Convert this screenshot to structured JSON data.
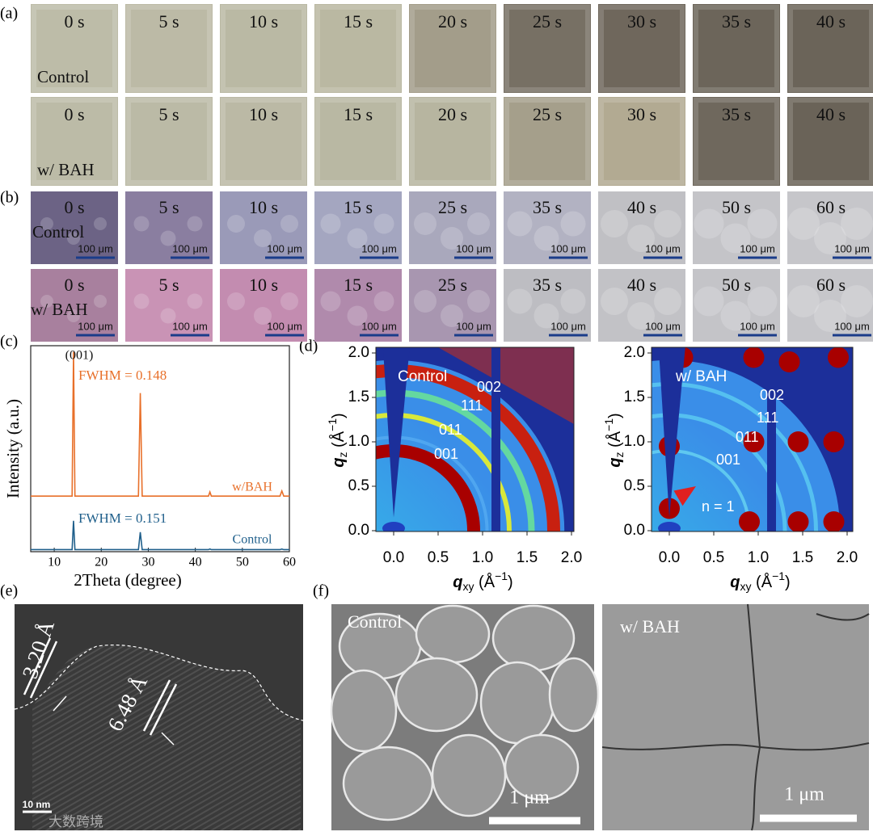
{
  "panels": {
    "a": {
      "label": "(a)",
      "times": [
        "0 s",
        "5 s",
        "10 s",
        "15 s",
        "20 s",
        "25 s",
        "30 s",
        "35 s",
        "40 s"
      ],
      "rows": [
        "Control",
        "w/ BAH"
      ]
    },
    "b": {
      "label": "(b)",
      "times": [
        "0 s",
        "5 s",
        "10 s",
        "15 s",
        "25 s",
        "35 s",
        "40 s",
        "50 s",
        "60 s"
      ],
      "rows": [
        "Control",
        "w/ BAH"
      ],
      "scale_bar": "100 μm"
    },
    "d": {
      "label": "(d)",
      "xlabel": {
        "symbol": "q",
        "sub": "xy",
        "unit": " (Å",
        "exp": "−1",
        "close": ")"
      },
      "ylabel": {
        "symbol": "q",
        "sub": "z",
        "unit": " (Å",
        "exp": "−1",
        "close": ")"
      },
      "xlim": [
        -0.2,
        2.0
      ],
      "ylim": [
        0,
        2.0
      ],
      "xticks": [
        {
          "value": 0,
          "label": "0.0"
        },
        0.5,
        {
          "value": 1,
          "label": "1.0"
        },
        1.5,
        {
          "value": 2,
          "label": "2.0"
        }
      ],
      "yticks": [
        {
          "value": 0,
          "label": "0.0"
        },
        0.5,
        {
          "value": 1,
          "label": "1.0"
        },
        1.5,
        {
          "value": 2,
          "label": "2.0"
        }
      ],
      "maps": [
        {
          "name": "Control",
          "peaks": [
            "002",
            "111",
            "011",
            "001"
          ]
        },
        {
          "name": "w/ BAH",
          "peaks": [
            "002",
            "111",
            "011",
            "001"
          ],
          "annotation": "n = 1"
        }
      ]
    },
    "e": {
      "label": "(e)",
      "spacings": [
        "3.20 Å",
        "6.48 Å"
      ],
      "scale_bar": "10 nm"
    },
    "f": {
      "label": "(f)",
      "images": [
        "Control",
        "w/ BAH"
      ],
      "scale_bar": "1 μm"
    }
  },
  "chart_data": {
    "type": "line",
    "label": "(c)",
    "xlabel": "2Theta (degree)",
    "ylabel": "Intensity (a.u.)",
    "x": [
      5,
      13.8,
      14.1,
      14.4,
      27.9,
      28.3,
      28.7,
      42.8,
      43.1,
      43.4,
      58.0,
      58.4,
      58.8,
      60
    ],
    "series": [
      {
        "name": "w/BAH",
        "color": "#e8702a",
        "values": [
          27,
          27,
          97,
          27,
          27,
          77,
          27,
          27,
          29,
          27,
          27,
          29.5,
          27,
          27
        ]
      },
      {
        "name": "Control",
        "color": "#1f5f8b",
        "values": [
          1,
          1,
          15,
          1,
          1,
          9.5,
          1,
          1,
          1.3,
          1,
          1,
          1.3,
          1,
          1
        ]
      }
    ],
    "annotations": [
      "(001)",
      "FWHM = 0.148",
      "FWHM = 0.151"
    ],
    "xlim": [
      5,
      60
    ],
    "xticks": [
      10,
      20,
      30,
      40,
      50,
      60
    ],
    "ylim": [
      0,
      100
    ]
  },
  "watermark": "大数跨境"
}
